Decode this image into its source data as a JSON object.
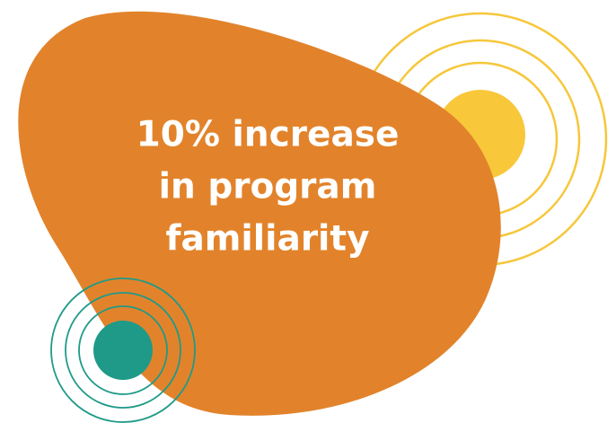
{
  "stat": {
    "lines": [
      "10% increase",
      "in program",
      "familiarity"
    ]
  }
}
